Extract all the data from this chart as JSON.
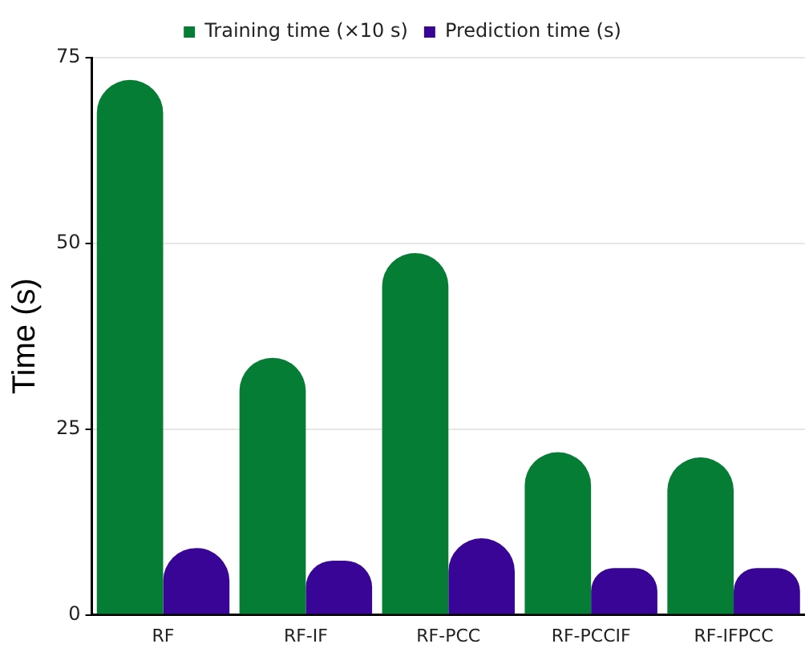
{
  "chart_data": {
    "type": "bar",
    "ylabel": "Time (s)",
    "categories": [
      "RF",
      "RF-IF",
      "RF-PCC",
      "RF-PCCIF",
      "RF-IFPCC"
    ],
    "series": [
      {
        "name": "Training time (×10 s)",
        "color": "#067d34",
        "values": [
          72,
          34.6,
          48.7,
          21.9,
          21.2
        ]
      },
      {
        "name": "Prediction time (s)",
        "color": "#380596",
        "values": [
          9,
          7.3,
          10.3,
          6.3,
          6.3
        ]
      }
    ],
    "ylim": [
      0,
      75
    ],
    "yticks": [
      0,
      25,
      50,
      75
    ],
    "grid": "y",
    "legend": "top"
  }
}
